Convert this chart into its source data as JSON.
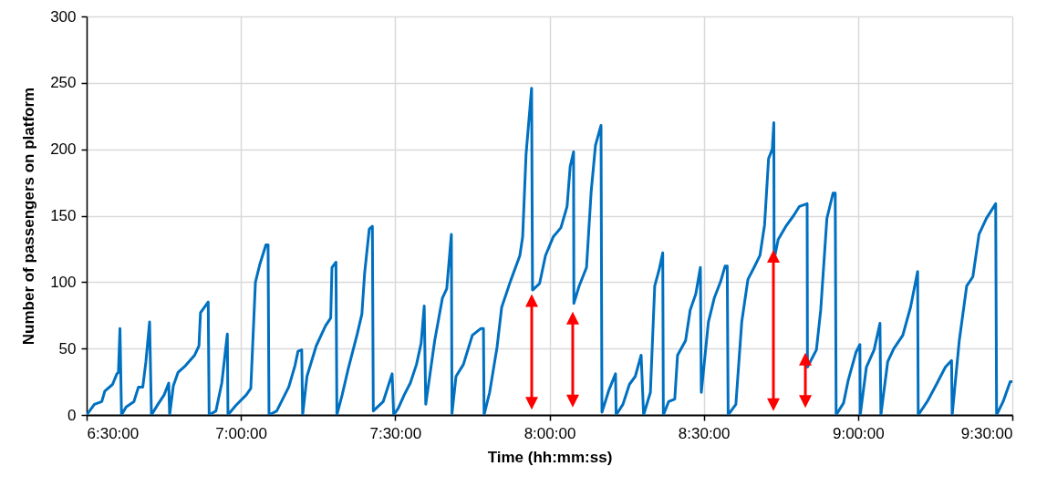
{
  "chart_data": {
    "type": "line",
    "xlabel": "Time (hh:mm:ss)",
    "ylabel": "Number of passengers on platform",
    "xlim": [
      6.5,
      9.5
    ],
    "xticks": [
      {
        "value": 6.5,
        "label": "6:30:00"
      },
      {
        "value": 7,
        "label": "7:00:00"
      },
      {
        "value": 7.5,
        "label": "7:30:00"
      },
      {
        "value": 8,
        "label": "8:00:00"
      },
      {
        "value": 8.5,
        "label": "8:30:00"
      },
      {
        "value": 9,
        "label": "9:00:00"
      },
      {
        "value": 9.5,
        "label": "9:30:00"
      }
    ],
    "ylim": [
      0,
      300
    ],
    "yticks": [
      0,
      50,
      100,
      150,
      200,
      250,
      300
    ],
    "grid": true,
    "marker": "none",
    "line_style": "solid",
    "series": [
      {
        "color": "#0070c0",
        "x": [
          6.5,
          6.525,
          6.549,
          6.559,
          6.584,
          6.598,
          6.603,
          6.608,
          6.613,
          6.628,
          6.653,
          6.668,
          6.682,
          6.692,
          6.704,
          6.71,
          6.731,
          6.751,
          6.766,
          6.769,
          6.781,
          6.796,
          6.82,
          6.85,
          6.864,
          6.869,
          6.894,
          6.897,
          6.919,
          6.938,
          6.956,
          6.958,
          6.983,
          7.017,
          7.032,
          7.047,
          7.062,
          7.081,
          7.088,
          7.091,
          7.116,
          7.155,
          7.175,
          7.185,
          7.197,
          7.2,
          7.214,
          7.244,
          7.274,
          7.291,
          7.295,
          7.308,
          7.311,
          7.328,
          7.347,
          7.377,
          7.392,
          7.401,
          7.416,
          7.426,
          7.429,
          7.461,
          7.49,
          7.495,
          7.51,
          7.529,
          7.549,
          7.569,
          7.584,
          7.594,
          7.599,
          7.628,
          7.653,
          7.667,
          7.682,
          7.684,
          7.697,
          7.721,
          7.75,
          7.777,
          7.786,
          7.788,
          7.806,
          7.83,
          7.845,
          7.874,
          7.904,
          7.913,
          7.924,
          7.942,
          7.945,
          7.968,
          7.987,
          8.012,
          8.037,
          8.057,
          8.067,
          8.078,
          8.079,
          8.096,
          8.12,
          8.135,
          8.149,
          8.167,
          8.17,
          8.193,
          8.214,
          8.216,
          8.238,
          8.259,
          8.278,
          8.297,
          8.305,
          8.327,
          8.341,
          8.355,
          8.367,
          8.369,
          8.386,
          8.406,
          8.415,
          8.441,
          8.456,
          8.474,
          8.489,
          8.492,
          8.515,
          8.534,
          8.554,
          8.569,
          8.576,
          8.579,
          8.604,
          8.623,
          8.643,
          8.663,
          8.682,
          8.697,
          8.71,
          8.722,
          8.727,
          8.728,
          8.741,
          8.766,
          8.791,
          8.81,
          8.835,
          8.836,
          8.865,
          8.879,
          8.899,
          8.919,
          8.926,
          8.929,
          8.953,
          8.968,
          8.993,
          9.006,
          9.007,
          9.027,
          9.052,
          9.071,
          9.074,
          9.096,
          9.116,
          9.145,
          9.17,
          9.193,
          9.195,
          9.224,
          9.254,
          9.283,
          9.303,
          9.305,
          9.328,
          9.352,
          9.372,
          9.392,
          9.416,
          9.446,
          9.449,
          9.47,
          9.493,
          9.5
        ],
        "values": [
          0,
          8,
          10,
          18,
          23,
          31,
          32,
          65,
          0,
          6,
          10,
          21,
          21,
          40,
          70,
          0,
          8,
          15,
          24,
          0,
          22,
          32,
          37,
          45,
          52,
          77,
          85,
          0,
          3,
          24,
          61,
          0,
          7,
          15,
          20,
          100,
          114,
          128,
          128,
          0,
          3,
          21,
          37,
          48,
          49,
          0,
          29,
          52,
          67,
          73,
          111,
          115,
          0,
          15,
          34,
          61,
          76,
          107,
          140,
          142,
          3,
          10,
          31,
          0,
          5,
          15,
          24,
          38,
          54,
          82,
          8,
          56,
          88,
          95,
          136,
          1,
          29,
          38,
          60,
          65,
          65,
          0,
          17,
          51,
          81,
          101,
          120,
          134,
          196,
          246,
          94,
          99,
          120,
          134,
          141,
          157,
          187,
          198,
          84,
          97,
          111,
          168,
          203,
          218,
          2,
          19,
          31,
          0,
          8,
          23,
          29,
          45,
          0,
          17,
          97,
          109,
          122,
          0,
          10,
          12,
          45,
          56,
          79,
          91,
          111,
          17,
          70,
          88,
          100,
          112,
          112,
          0,
          8,
          70,
          102,
          111,
          120,
          143,
          193,
          200,
          220,
          117,
          132,
          142,
          150,
          157,
          159,
          36,
          49,
          79,
          148,
          167,
          167,
          0,
          9,
          26,
          47,
          53,
          0,
          36,
          49,
          69,
          0,
          40,
          50,
          60,
          81,
          108,
          0,
          10,
          23,
          36,
          41,
          0,
          56,
          97,
          104,
          136,
          148,
          159,
          0,
          10,
          25,
          25
        ]
      }
    ]
  }
}
